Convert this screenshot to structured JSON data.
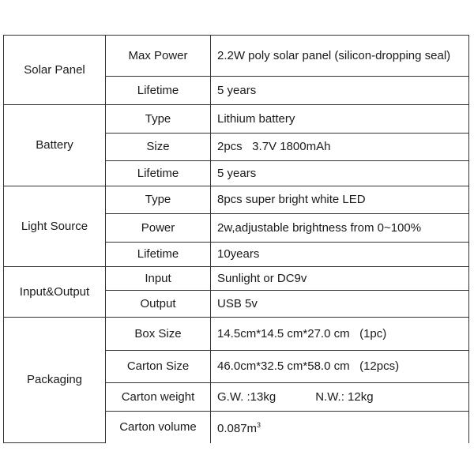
{
  "groups": [
    {
      "name": "Solar Panel",
      "rows": [
        {
          "key": "Max Power",
          "value": "2.2W poly solar panel (silicon-dropping seal)"
        },
        {
          "key": "Lifetime",
          "value": "5 years"
        }
      ]
    },
    {
      "name": "Battery",
      "rows": [
        {
          "key": "Type",
          "value": "Lithium battery"
        },
        {
          "key": "Size",
          "value": "2pcs   3.7V 1800mAh"
        },
        {
          "key": "Lifetime",
          "value": "5 years"
        }
      ]
    },
    {
      "name": "Light Source",
      "rows": [
        {
          "key": "Type",
          "value": "8pcs super bright white LED"
        },
        {
          "key": "Power",
          "value": "2w,adjustable brightness from 0~100%"
        },
        {
          "key": "Lifetime",
          "value": "10years"
        }
      ]
    },
    {
      "name": "Input&Output",
      "rows": [
        {
          "key": "Input",
          "value": "Sunlight or DC9v"
        },
        {
          "key": "Output",
          "value": "USB 5v"
        }
      ]
    },
    {
      "name": "Packaging",
      "rows": [
        {
          "key": "Box Size",
          "value": "14.5cm*14.5 cm*27.0 cm   (1pc)"
        },
        {
          "key": "Carton Size",
          "value": "46.0cm*32.5 cm*58.0 cm   (12pcs)"
        },
        {
          "key": "Carton weight",
          "value": "G.W. :13kg            N.W.: 12kg"
        },
        {
          "key": "Carton volume",
          "value": "0.087m",
          "value_sup": "3"
        }
      ]
    }
  ]
}
